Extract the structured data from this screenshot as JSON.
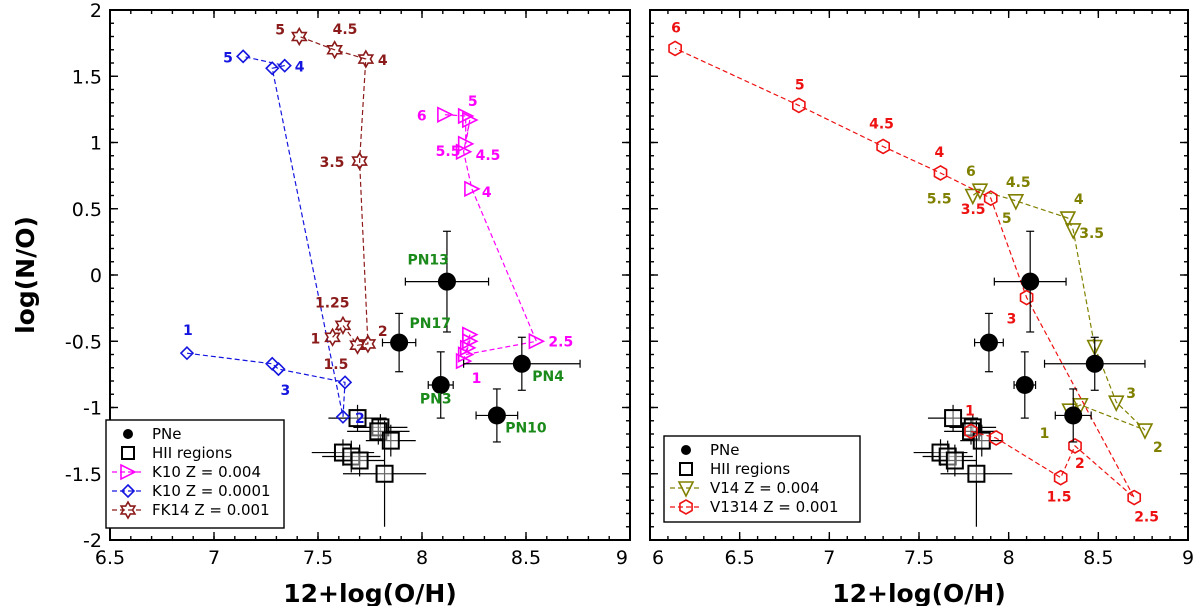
{
  "chart_data": [
    {
      "type": "scatter",
      "panel": "left",
      "xlabel": "12+log(O/H)",
      "ylabel": "log(N/O)",
      "xlim": [
        6.5,
        9
      ],
      "ylim": [
        -2,
        2
      ],
      "xticks": [
        "6.5",
        "7",
        "7.5",
        "8",
        "8.5",
        "9"
      ],
      "yticks": [
        "2",
        "1.5",
        "1",
        "0.5",
        "0",
        "-0.5",
        "-1",
        "-1.5",
        "-2"
      ],
      "pne": [
        {
          "x": 8.12,
          "y": -0.05,
          "xerr": 0.2,
          "yerr": 0.38
        },
        {
          "x": 7.89,
          "y": -0.51,
          "xerr": 0.08,
          "yerr": 0.22
        },
        {
          "x": 8.09,
          "y": -0.83,
          "xerr": 0.06,
          "yerr": 0.25
        },
        {
          "x": 8.48,
          "y": -0.67,
          "xerr": 0.28,
          "yerr": 0.2
        },
        {
          "x": 8.36,
          "y": -1.06,
          "xerr": 0.1,
          "yerr": 0.2
        }
      ],
      "pne_labels": [
        {
          "text": "PN13",
          "x": 7.93,
          "y": 0.08
        },
        {
          "text": "PN17",
          "x": 7.94,
          "y": -0.4
        },
        {
          "text": "PN3",
          "x": 7.99,
          "y": -0.97
        },
        {
          "text": "PN4",
          "x": 8.53,
          "y": -0.8
        },
        {
          "text": "PN10",
          "x": 8.4,
          "y": -1.19
        }
      ],
      "hii": [
        {
          "x": 7.69,
          "y": -1.08,
          "xerr": 0.14,
          "yerr": 0.1
        },
        {
          "x": 7.62,
          "y": -1.34,
          "xerr": 0.15,
          "yerr": 0.1
        },
        {
          "x": 7.66,
          "y": -1.37,
          "xerr": 0.14,
          "yerr": 0.12
        },
        {
          "x": 7.7,
          "y": -1.4,
          "xerr": 0.12,
          "yerr": 0.12
        },
        {
          "x": 7.8,
          "y": -1.15,
          "xerr": 0.13,
          "yerr": 0.1
        },
        {
          "x": 7.79,
          "y": -1.18,
          "xerr": 0.15,
          "yerr": 0.1
        },
        {
          "x": 7.85,
          "y": -1.25,
          "xerr": 0.12,
          "yerr": 0.12
        },
        {
          "x": 7.82,
          "y": -1.5,
          "xerr": 0.2,
          "yerr": 0.4
        }
      ],
      "series": [
        {
          "name": "K10 Z = 0.004",
          "color": "#ff00ff",
          "marker": "triangle-right",
          "x": [
            8.2,
            8.23,
            8.23,
            8.22,
            8.21,
            8.55,
            8.24,
            8.2,
            8.23,
            8.21,
            8.21,
            8.11
          ],
          "y": [
            -0.65,
            -0.45,
            -0.5,
            -0.55,
            -0.6,
            -0.5,
            0.65,
            0.93,
            1.17,
            0.99,
            1.2,
            1.21
          ],
          "labels": [
            {
              "text": "1",
              "dx": 8,
              "dy": 22
            },
            {
              "text": "2.5",
              "dx": 12,
              "dy": 5
            },
            {
              "text": "4",
              "dx": 10,
              "dy": 8
            },
            {
              "text": "4.5",
              "dx": 12,
              "dy": 8
            },
            {
              "text": "5",
              "dx": -2,
              "dy": -14
            },
            {
              "text": "5.5",
              "dx": -30,
              "dy": 12
            },
            {
              "text": "6",
              "dx": -28,
              "dy": 6
            }
          ],
          "label_pts": [
            0,
            5,
            6,
            7,
            8,
            9,
            11
          ]
        },
        {
          "name": "K10 Z = 0.0001",
          "color": "#1515e0",
          "marker": "diamond",
          "x": [
            6.87,
            7.28,
            7.31,
            7.63,
            7.62,
            7.28,
            7.34,
            7.14
          ],
          "y": [
            -0.59,
            -0.67,
            -0.71,
            -0.81,
            -1.07,
            1.56,
            1.58,
            1.65
          ],
          "labels": [
            {
              "text": "1",
              "dx": -4,
              "dy": -18
            },
            {
              "text": "3",
              "dx": 2,
              "dy": 26
            },
            {
              "text": "2",
              "dx": 12,
              "dy": 6
            },
            {
              "text": "4",
              "dx": 10,
              "dy": 6
            },
            {
              "text": "5",
              "dx": -20,
              "dy": 6
            }
          ],
          "label_pts": [
            0,
            2,
            4,
            6,
            7
          ]
        },
        {
          "name": "FK14 Z = 0.001",
          "color": "#8b1a1a",
          "marker": "star",
          "x": [
            7.57,
            7.62,
            7.69,
            7.74,
            7.7,
            7.73,
            7.58,
            7.41
          ],
          "y": [
            -0.47,
            -0.38,
            -0.53,
            -0.52,
            0.86,
            1.63,
            1.7,
            1.8
          ],
          "labels": [
            {
              "text": "1",
              "dx": -22,
              "dy": 6
            },
            {
              "text": "1.25",
              "dx": -28,
              "dy": -18
            },
            {
              "text": "1.5",
              "dx": -34,
              "dy": 24
            },
            {
              "text": "2",
              "dx": 10,
              "dy": -8
            },
            {
              "text": "3.5",
              "dx": -40,
              "dy": 6
            },
            {
              "text": "4",
              "dx": 12,
              "dy": 6
            },
            {
              "text": "4.5",
              "dx": -2,
              "dy": -16
            },
            {
              "text": "5",
              "dx": -24,
              "dy": -2
            }
          ],
          "label_pts": [
            0,
            1,
            2,
            3,
            4,
            5,
            6,
            7
          ]
        }
      ],
      "legend": [
        "PNe",
        "HII regions",
        "K10 Z = 0.004",
        "K10 Z = 0.0001",
        "FK14 Z = 0.001"
      ]
    },
    {
      "type": "scatter",
      "panel": "right",
      "xlabel": "12+log(O/H)",
      "ylabel": "",
      "xlim": [
        6.0,
        9
      ],
      "ylim": [
        -2,
        2
      ],
      "xticks": [
        "6",
        "6.5",
        "7",
        "7.5",
        "8",
        "8.5",
        "9"
      ],
      "pne": [
        {
          "x": 8.12,
          "y": -0.05,
          "xerr": 0.2,
          "yerr": 0.38
        },
        {
          "x": 7.89,
          "y": -0.51,
          "xerr": 0.08,
          "yerr": 0.22
        },
        {
          "x": 8.09,
          "y": -0.83,
          "xerr": 0.06,
          "yerr": 0.25
        },
        {
          "x": 8.48,
          "y": -0.67,
          "xerr": 0.28,
          "yerr": 0.2
        },
        {
          "x": 8.36,
          "y": -1.06,
          "xerr": 0.1,
          "yerr": 0.2
        }
      ],
      "hii": [
        {
          "x": 7.69,
          "y": -1.08,
          "xerr": 0.14,
          "yerr": 0.1
        },
        {
          "x": 7.62,
          "y": -1.34,
          "xerr": 0.15,
          "yerr": 0.1
        },
        {
          "x": 7.66,
          "y": -1.37,
          "xerr": 0.14,
          "yerr": 0.12
        },
        {
          "x": 7.7,
          "y": -1.4,
          "xerr": 0.12,
          "yerr": 0.12
        },
        {
          "x": 7.8,
          "y": -1.15,
          "xerr": 0.13,
          "yerr": 0.1
        },
        {
          "x": 7.79,
          "y": -1.18,
          "xerr": 0.15,
          "yerr": 0.1
        },
        {
          "x": 7.85,
          "y": -1.25,
          "xerr": 0.12,
          "yerr": 0.12
        },
        {
          "x": 7.82,
          "y": -1.5,
          "xerr": 0.2,
          "yerr": 0.4
        }
      ],
      "series": [
        {
          "name": "V14    Z = 0.004",
          "color": "#808000",
          "marker": "triangle-down",
          "x": [
            8.34,
            8.4,
            8.76,
            8.6,
            8.48,
            8.36,
            8.33,
            8.04,
            7.84,
            7.8
          ],
          "y": [
            -1.02,
            -0.98,
            -1.17,
            -0.96,
            -0.54,
            0.34,
            0.43,
            0.56,
            0.64,
            0.6
          ],
          "labels": [
            {
              "text": "1",
              "dx": -30,
              "dy": 28
            },
            {
              "text": "2",
              "dx": 8,
              "dy": 22
            },
            {
              "text": "3",
              "dx": 10,
              "dy": -4
            },
            {
              "text": "3.5",
              "dx": 6,
              "dy": 8
            },
            {
              "text": "4",
              "dx": 6,
              "dy": -14
            },
            {
              "text": "4.5",
              "dx": -10,
              "dy": -14
            },
            {
              "text": "5",
              "dx": -14,
              "dy": 22
            },
            {
              "text": "6",
              "dx": -14,
              "dy": -14
            },
            {
              "text": "5.5",
              "dx": -46,
              "dy": 8
            }
          ],
          "label_pts": [
            0,
            2,
            3,
            5,
            6,
            7,
            7,
            8,
            9
          ]
        },
        {
          "name": "V1314 Z = 0.001",
          "color": "#ee1111",
          "marker": "hexagon",
          "x": [
            7.79,
            7.93,
            8.29,
            8.37,
            8.7,
            8.1,
            7.9,
            7.62,
            7.3,
            6.83,
            6.14
          ],
          "y": [
            -1.18,
            -1.23,
            -1.53,
            -1.29,
            -1.68,
            -0.17,
            0.58,
            0.77,
            0.97,
            1.28,
            1.71
          ],
          "labels": [
            {
              "text": "1",
              "dx": -6,
              "dy": -16
            },
            {
              "text": "1.5",
              "dx": -14,
              "dy": 24
            },
            {
              "text": "2",
              "dx": 0,
              "dy": 22
            },
            {
              "text": "2.5",
              "dx": 0,
              "dy": 24
            },
            {
              "text": "3",
              "dx": -20,
              "dy": 26
            },
            {
              "text": "3.5",
              "dx": -30,
              "dy": 16
            },
            {
              "text": "4",
              "dx": -6,
              "dy": -16
            },
            {
              "text": "4.5",
              "dx": -14,
              "dy": -18
            },
            {
              "text": "5",
              "dx": -4,
              "dy": -16
            },
            {
              "text": "6",
              "dx": -4,
              "dy": -16
            }
          ],
          "label_pts": [
            0,
            2,
            3,
            4,
            5,
            6,
            7,
            8,
            9,
            10
          ]
        }
      ],
      "legend": [
        "PNe",
        "HII regions",
        "V14    Z = 0.004",
        "V1314 Z = 0.001"
      ]
    }
  ]
}
